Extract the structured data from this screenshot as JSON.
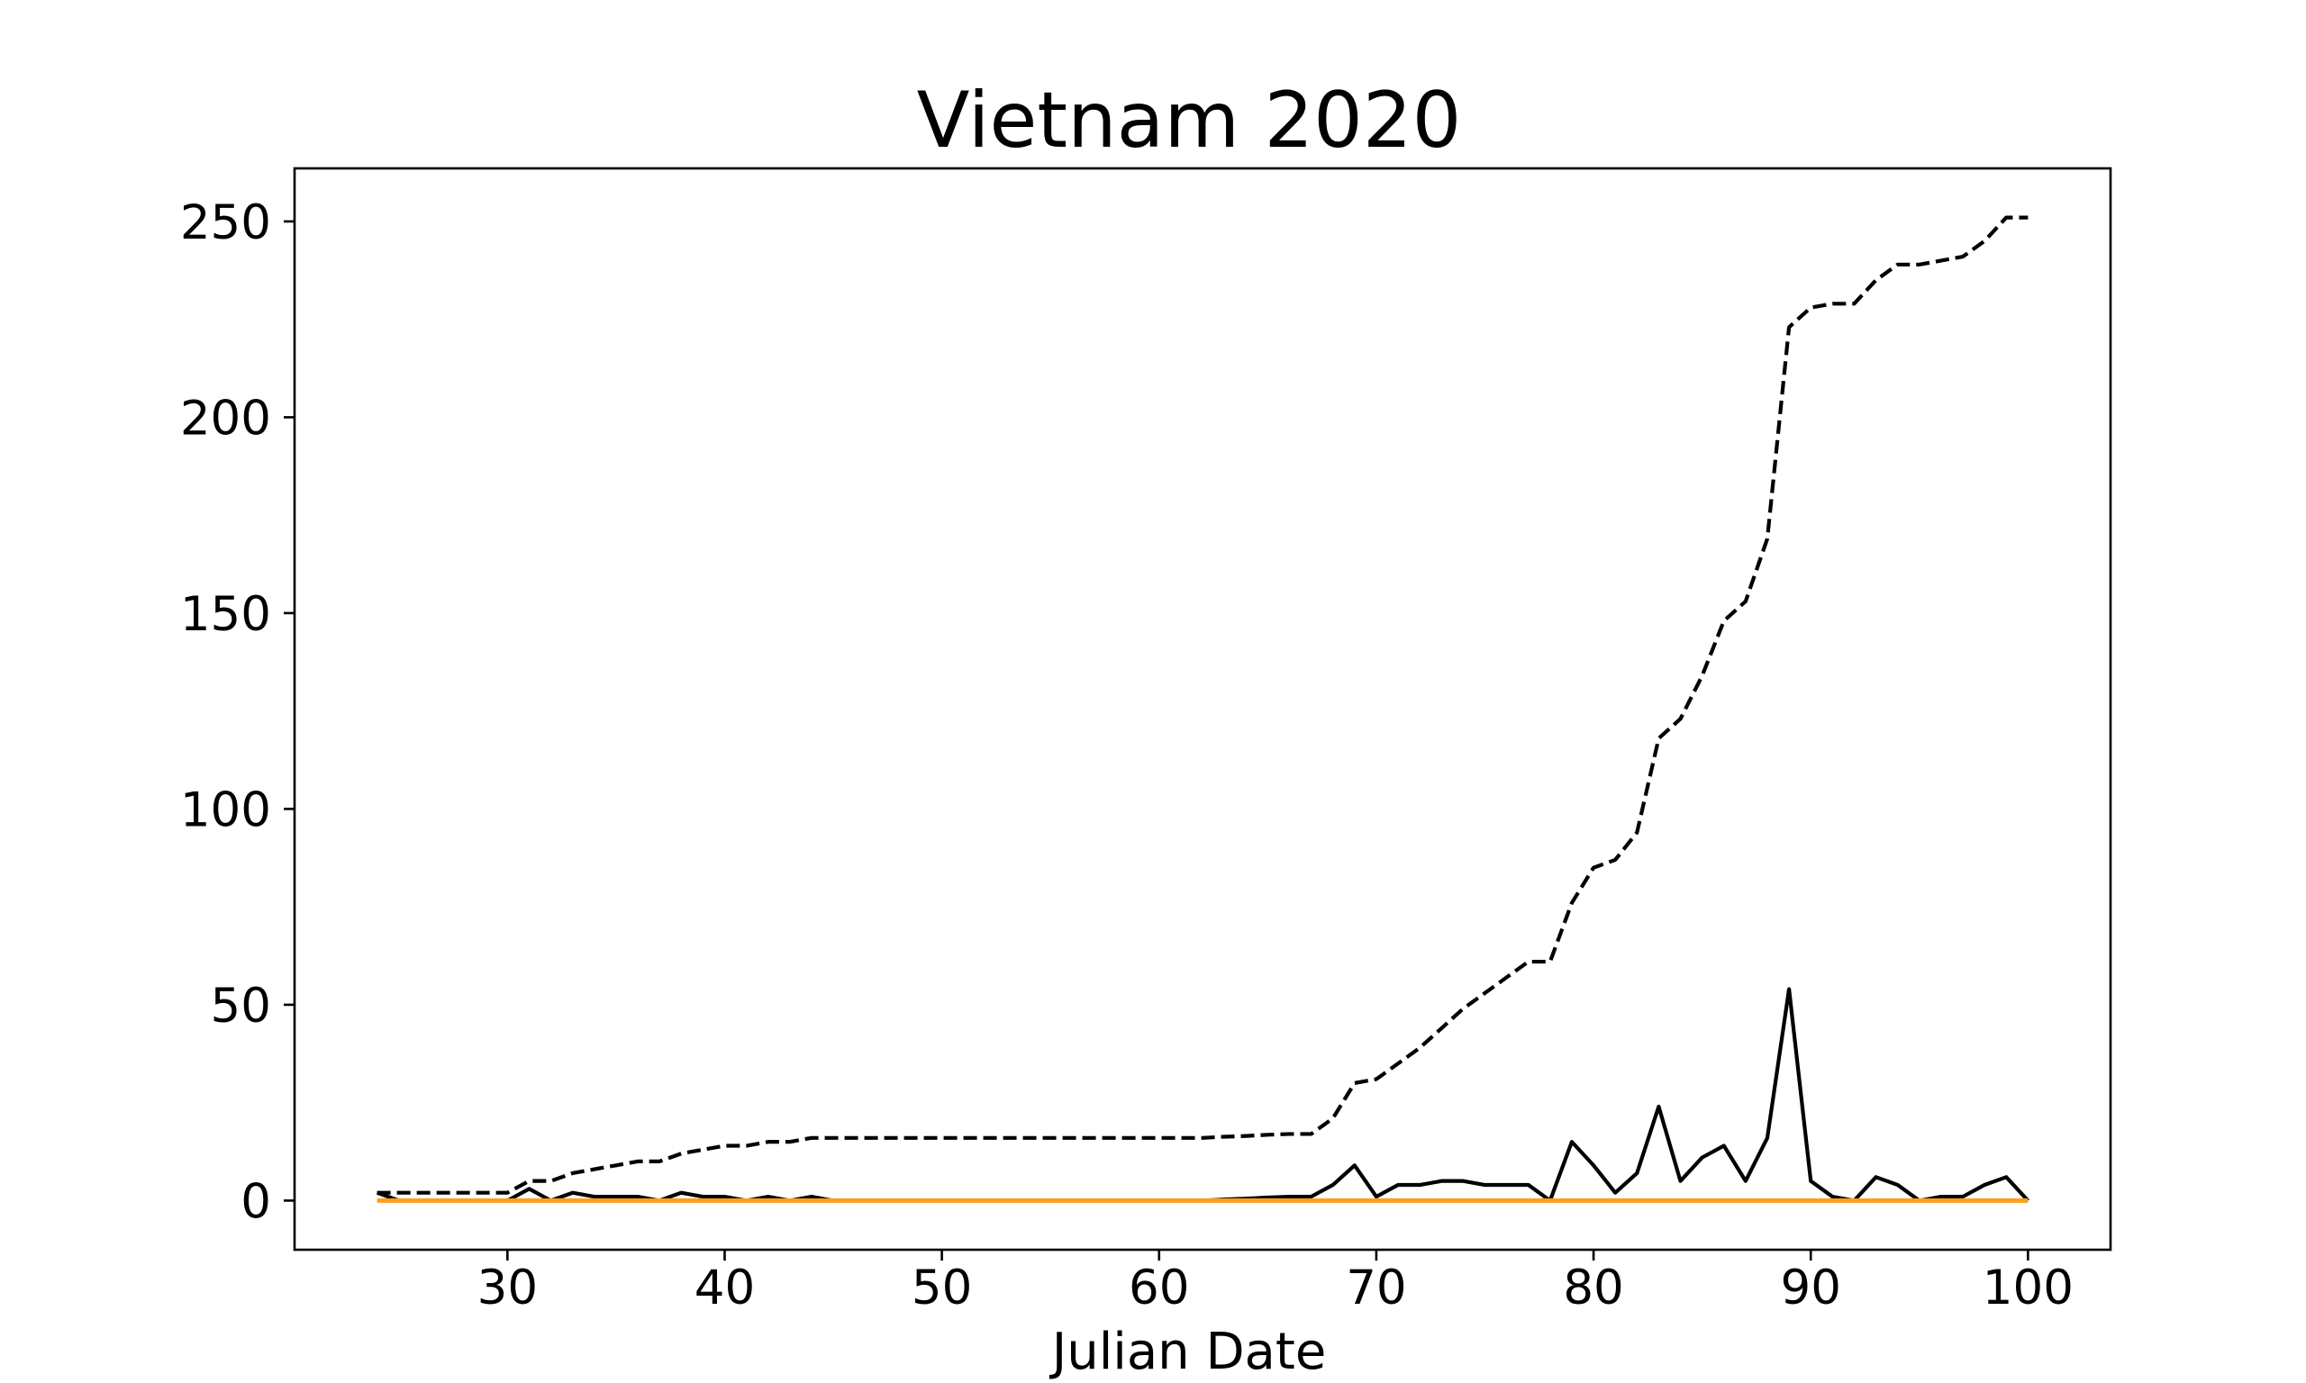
{
  "chart_data": {
    "type": "line",
    "title": "Vietnam 2020",
    "xlabel": "Julian Date",
    "ylabel": "",
    "xlim": [
      20.2,
      103.8
    ],
    "ylim": [
      -12.55,
      263.55
    ],
    "xticks": [
      30,
      40,
      50,
      60,
      70,
      80,
      90,
      100
    ],
    "yticks": [
      0,
      50,
      100,
      150,
      200,
      250
    ],
    "grid": false,
    "legend": "none",
    "x": [
      24,
      25,
      26,
      27,
      28,
      29,
      30,
      31,
      32,
      33,
      34,
      35,
      36,
      37,
      38,
      39,
      40,
      41,
      42,
      43,
      44,
      45,
      46,
      47,
      48,
      49,
      50,
      51,
      52,
      53,
      54,
      55,
      56,
      57,
      58,
      59,
      60,
      61,
      62,
      63,
      64,
      65,
      66,
      67,
      68,
      69,
      70,
      71,
      72,
      73,
      74,
      75,
      76,
      77,
      78,
      79,
      80,
      81,
      82,
      83,
      84,
      85,
      86,
      87,
      88,
      89,
      90,
      91,
      92,
      93,
      94,
      95,
      96,
      97,
      98,
      99,
      100
    ],
    "series": [
      {
        "style": "dashed",
        "color": "#000000",
        "values": [
          2,
          2,
          2,
          2,
          2,
          2,
          2,
          5,
          5,
          7,
          8,
          9,
          10,
          10,
          12,
          13,
          14,
          14,
          15,
          15,
          16,
          16,
          16,
          16,
          16,
          16,
          16,
          16,
          16,
          16,
          16,
          16,
          16,
          16,
          16,
          16,
          16,
          16,
          16,
          16.3,
          16.5,
          16.8,
          17,
          17,
          21,
          30,
          31,
          35,
          39,
          44,
          49,
          53,
          57,
          61,
          61,
          76,
          85,
          87,
          94,
          118,
          123,
          134,
          148,
          153,
          169,
          223,
          228,
          229,
          229,
          235,
          239,
          239,
          240,
          241,
          245,
          251,
          251
        ]
      },
      {
        "style": "solid",
        "color": "#000000",
        "values": [
          2,
          0,
          0,
          0,
          0,
          0,
          0,
          3,
          0,
          2,
          1,
          1,
          1,
          0,
          2,
          1,
          1,
          0,
          1,
          0,
          1,
          0,
          0,
          0,
          0,
          0,
          0,
          0,
          0,
          0,
          0,
          0,
          0,
          0,
          0,
          0,
          0,
          0,
          0,
          0.3,
          0.5,
          0.8,
          1,
          1,
          4,
          9,
          1,
          4,
          4,
          5,
          5,
          4,
          4,
          4,
          0,
          15,
          9,
          2,
          7,
          24,
          5,
          11,
          14,
          5,
          16,
          54,
          5,
          1,
          0,
          6,
          4,
          0,
          1,
          1,
          4,
          6,
          0
        ]
      },
      {
        "style": "solid",
        "color": "#ff9e1b",
        "values": [
          0,
          0,
          0,
          0,
          0,
          0,
          0,
          0,
          0,
          0,
          0,
          0,
          0,
          0,
          0,
          0,
          0,
          0,
          0,
          0,
          0,
          0,
          0,
          0,
          0,
          0,
          0,
          0,
          0,
          0,
          0,
          0,
          0,
          0,
          0,
          0,
          0,
          0,
          0,
          0,
          0,
          0,
          0,
          0,
          0,
          0,
          0,
          0,
          0,
          0,
          0,
          0,
          0,
          0,
          0,
          0,
          0,
          0,
          0,
          0,
          0,
          0,
          0,
          0,
          0,
          0,
          0,
          0,
          0,
          0,
          0,
          0,
          0,
          0,
          0,
          0,
          0
        ]
      }
    ]
  }
}
